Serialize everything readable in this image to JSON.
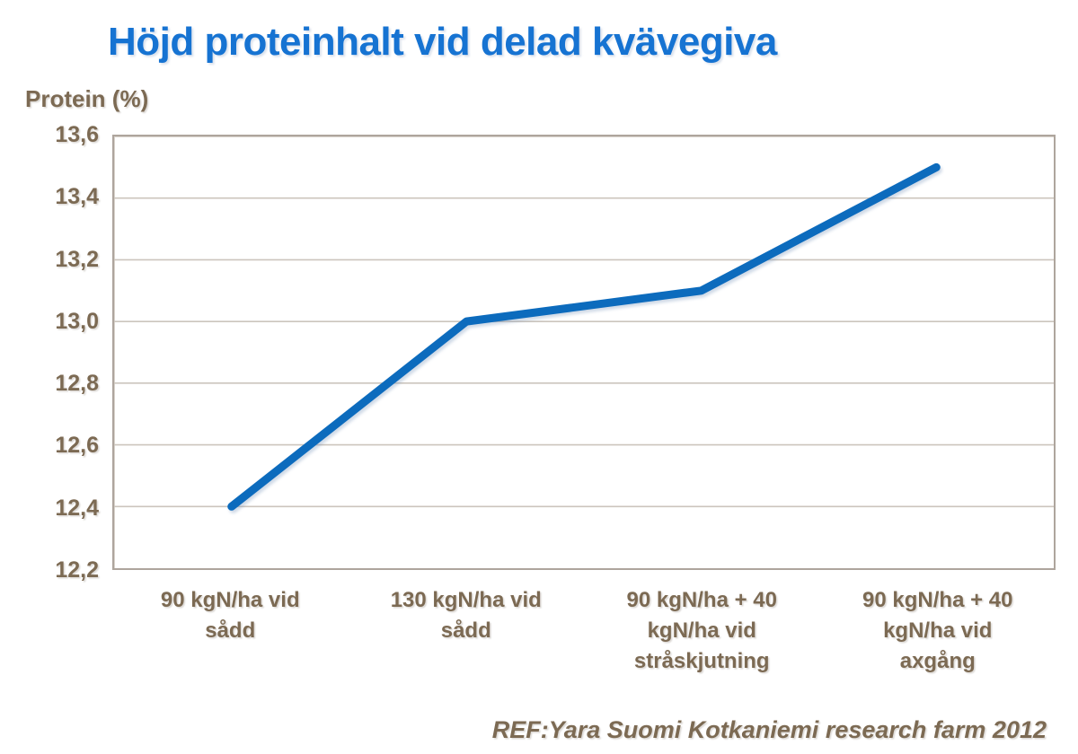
{
  "page": {
    "title": "Höjd proteinhalt vid delad kvävegiva",
    "footer": "REF:Yara Suomi Kotkaniemi research farm 2012"
  },
  "chart_data": {
    "type": "line",
    "title": "Höjd proteinhalt vid delad kvävegiva",
    "xlabel": "",
    "ylabel": "Protein (%)",
    "categories": [
      "90 kgN/ha vid sådd",
      "130 kgN/ha vid sådd",
      "90 kgN/ha + 40 kgN/ha vid stråskjutning",
      "90 kgN/ha + 40 kgN/ha vid axgång"
    ],
    "category_lines": [
      [
        "90 kgN/ha vid",
        "sådd"
      ],
      [
        "130 kgN/ha vid",
        "sådd"
      ],
      [
        "90 kgN/ha + 40",
        "kgN/ha vid",
        "stråskjutning"
      ],
      [
        "90 kgN/ha + 40",
        "kgN/ha vid",
        "axgång"
      ]
    ],
    "values": [
      12.4,
      13.0,
      13.1,
      13.5
    ],
    "ylim": [
      12.2,
      13.6
    ],
    "ytick_step": 0.2,
    "yticks": [
      "13,6",
      "13,4",
      "13,2",
      "13,0",
      "12,8",
      "12,6",
      "12,4",
      "12,2"
    ],
    "ytick_values": [
      13.6,
      13.4,
      13.2,
      13.0,
      12.8,
      12.6,
      12.4,
      12.2
    ],
    "grid": true,
    "legend_position": "none",
    "annotation": "REF:Yara Suomi Kotkaniemi research farm 2012"
  },
  "colors": {
    "title_blue": "#1673d2",
    "line_blue": "#0c6bbd",
    "axis_text_brown": "#7c6a53",
    "plot_border": "#aea59d",
    "gridline": "#ccc5bd"
  }
}
